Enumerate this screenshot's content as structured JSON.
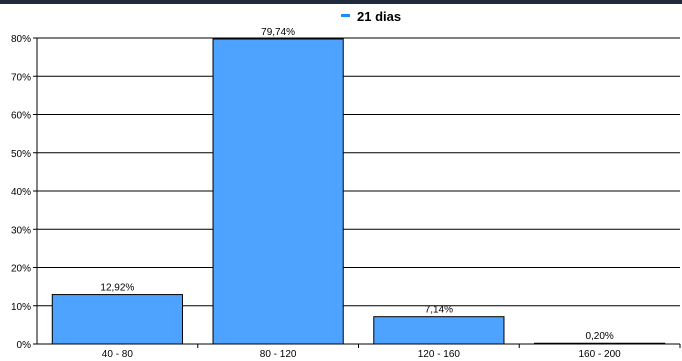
{
  "chart_data": {
    "type": "bar",
    "title": "",
    "xlabel": "",
    "ylabel": "",
    "categories": [
      "40 - 80",
      "80 - 120",
      "120 - 160",
      "160 - 200"
    ],
    "series": [
      {
        "name": "21 dias",
        "values": [
          12.92,
          79.74,
          7.14,
          0.2
        ],
        "value_labels": [
          "12,92%",
          "79,74%",
          "7,14%",
          "0,20%"
        ]
      }
    ],
    "ylim": [
      0,
      80
    ],
    "yticks": [
      0,
      10,
      20,
      30,
      40,
      50,
      60,
      70,
      80
    ],
    "ytick_labels": [
      "0%",
      "10%",
      "20%",
      "30%",
      "40%",
      "50%",
      "60%",
      "70%",
      "80%"
    ],
    "grid": true,
    "legend": "top-center",
    "colors": {
      "bar": "#4da3ff",
      "bar_stroke": "#000000",
      "legend_marker": "#1a8cff",
      "frame": "#1f2a3c"
    }
  }
}
